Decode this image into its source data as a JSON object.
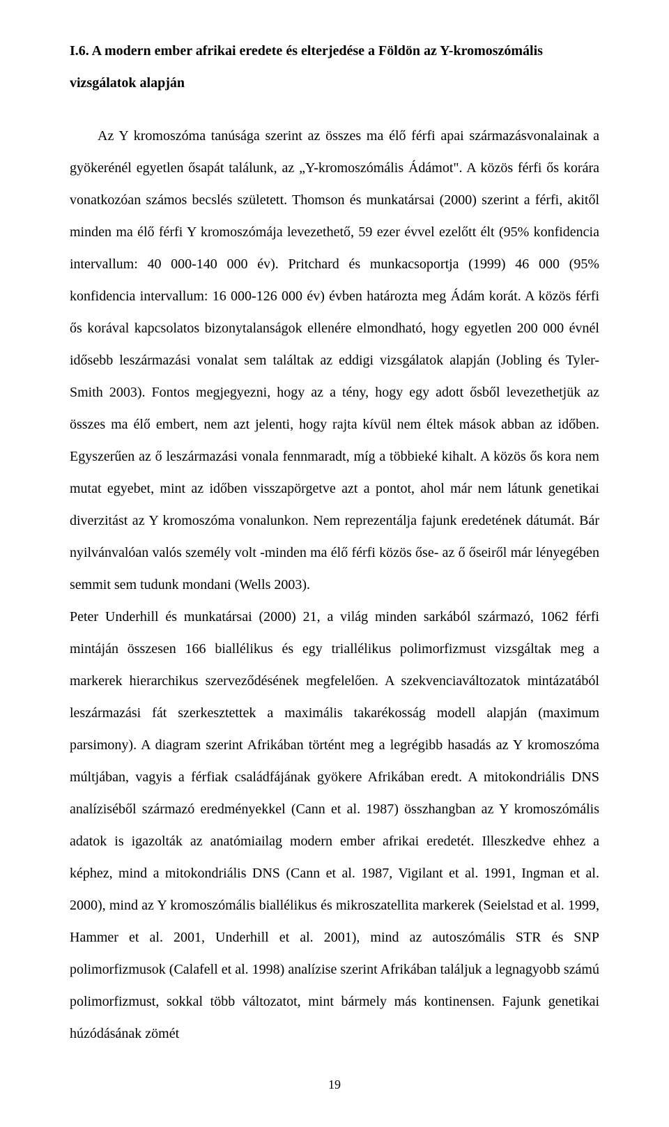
{
  "heading_line1": "I.6. A modern ember afrikai eredete és elterjedése a Földön az Y-kromoszómális",
  "heading_line2": "vizsgálatok alapján",
  "para1": "Az Y kromoszóma tanúsága szerint az összes ma élő férfi apai származásvonalainak a gyökerénél egyetlen ősapát találunk, az „Y-kromoszómális Ádámot\". A közös férfi ős korára vonatkozóan számos becslés született. Thomson és munkatársai (2000) szerint a férfi, akitől minden ma élő férfi Y kromoszómája levezethető, 59 ezer évvel ezelőtt élt (95% konfidencia intervallum: 40 000-140 000 év). Pritchard és munkacsoportja (1999) 46 000 (95% konfidencia intervallum: 16 000-126 000 év) évben határozta meg Ádám korát. A közös férfi ős korával kapcsolatos bizonytalanságok ellenére elmondható, hogy egyetlen 200 000 évnél idősebb leszármazási vonalat sem találtak az eddigi vizsgálatok alapján (Jobling és Tyler-Smith 2003). Fontos megjegyezni, hogy az a tény, hogy egy adott ősből levezethetjük az összes ma élő embert, nem azt jelenti, hogy rajta kívül nem éltek mások abban az időben. Egyszerűen az ő leszármazási vonala fennmaradt, míg a többieké kihalt. A közös ős kora nem mutat egyebet, mint az időben visszapörgetve azt a pontot, ahol már nem látunk genetikai diverzitást az Y kromoszóma vonalunkon. Nem reprezentálja fajunk eredetének dátumát. Bár nyilvánvalóan valós személy volt -minden ma élő férfi közös őse- az ő őseiről már lényegében semmit sem tudunk mondani (Wells 2003).",
  "para2": "Peter Underhill és munkatársai (2000) 21, a világ minden sarkából származó, 1062 férfi mintáján összesen 166 biallélikus és egy triallélikus polimorfizmust vizsgáltak meg a markerek hierarchikus szerveződésének megfelelően. A szekvenciaváltozatok mintázatából leszármazási fát szerkesztettek a maximális takarékosság modell alapján (maximum parsimony). A diagram szerint Afrikában történt meg a legrégibb hasadás az Y kromoszóma múltjában, vagyis a férfiak családfájának gyökere Afrikában eredt. A mitokondriális DNS analíziséből származó eredményekkel (Cann et al. 1987) összhangban az Y kromoszómális adatok is igazolták az anatómiailag modern ember afrikai eredetét. Illeszkedve ehhez a képhez, mind a mitokondriális DNS (Cann et al. 1987, Vigilant et al. 1991, Ingman et al. 2000), mind az Y kromoszómális biallélikus és mikroszatellita markerek (Seielstad et al. 1999, Hammer et al. 2001, Underhill et al. 2001), mind az autoszómális STR és SNP polimorfizmusok (Calafell et al. 1998) analízise szerint Afrikában találjuk a legnagyobb számú polimorfizmust, sokkal több változatot, mint bármely más kontinensen. Fajunk genetikai húzódásának zömét",
  "page_number": "19"
}
